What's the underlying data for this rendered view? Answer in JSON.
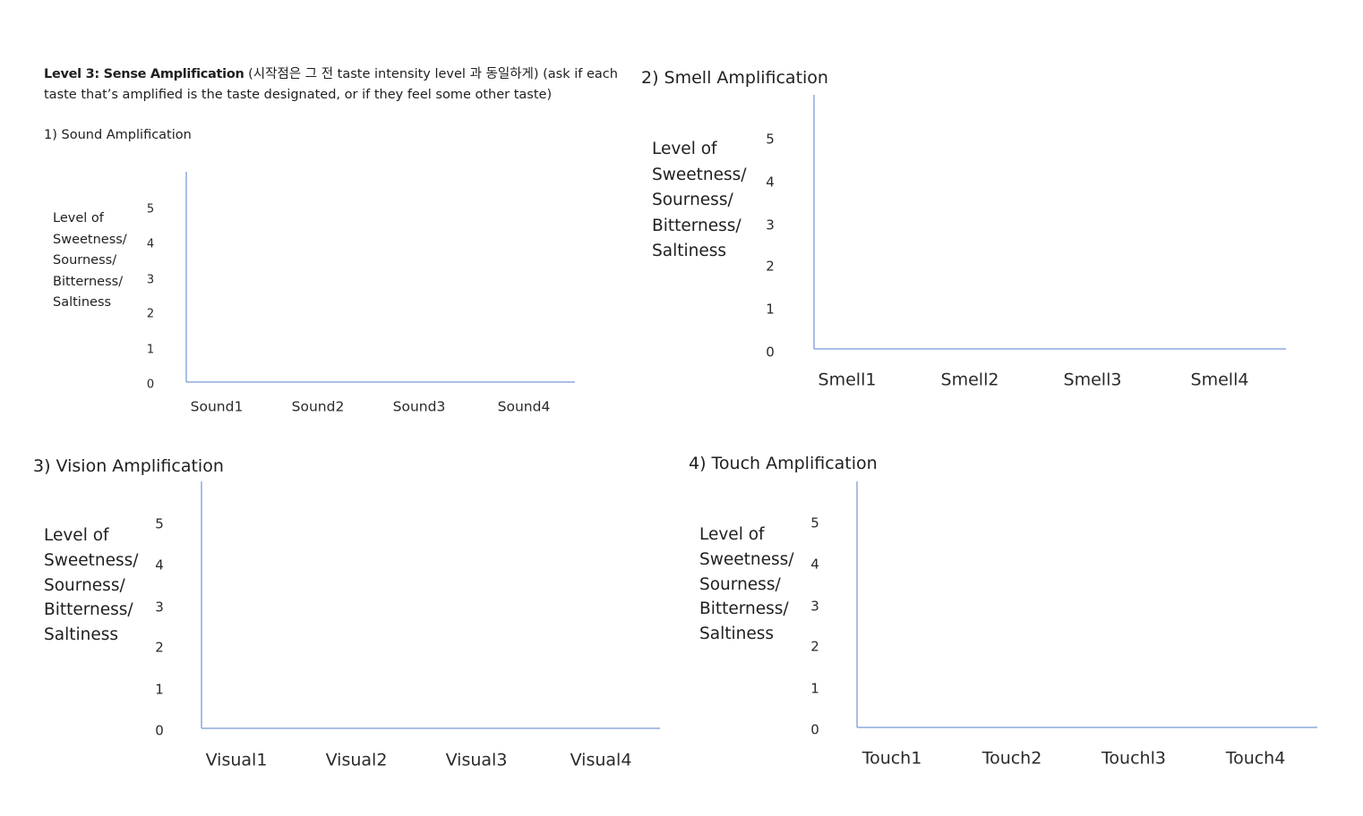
{
  "intro": {
    "bold": "Level 3: Sense Amplification",
    "rest": " (시작점은 그 전 taste intensity level 과 동일하게) (ask if each taste that’s amplified is the taste designated, or if they feel some other taste)"
  },
  "colors": {
    "axis": "#8eaadb",
    "text": "#1f1f1f"
  },
  "chart_data": [
    {
      "type": "bar",
      "title": "1) Sound Amplification",
      "ylabel": "Level of\nSweetness/\nSourness/\nBitterness/\nSaltiness",
      "categories": [
        "Sound1",
        "Sound2",
        "Sound3",
        "Sound4"
      ],
      "values": [
        null,
        null,
        null,
        null
      ],
      "yticks": [
        "0",
        "1",
        "2",
        "3",
        "4",
        "5"
      ],
      "ylim": [
        0,
        5
      ],
      "grid": false
    },
    {
      "type": "bar",
      "title": "2) Smell Amplification",
      "ylabel": "Level of\nSweetness/\nSourness/\nBitterness/\nSaltiness",
      "categories": [
        "Smell1",
        "Smell2",
        "Smell3",
        "Smell4"
      ],
      "values": [
        null,
        null,
        null,
        null
      ],
      "yticks": [
        "0",
        "1",
        "2",
        "3",
        "4",
        "5"
      ],
      "ylim": [
        0,
        5
      ],
      "grid": false
    },
    {
      "type": "bar",
      "title": "3) Vision Amplification",
      "ylabel": "Level of\nSweetness/\nSourness/\nBitterness/\nSaltiness",
      "categories": [
        "Visual1",
        "Visual2",
        "Visual3",
        "Visual4"
      ],
      "values": [
        null,
        null,
        null,
        null
      ],
      "yticks": [
        "0",
        "1",
        "2",
        "3",
        "4",
        "5"
      ],
      "ylim": [
        0,
        5
      ],
      "grid": false
    },
    {
      "type": "bar",
      "title": "4) Touch Amplification",
      "ylabel": "Level of\nSweetness/\nSourness/\nBitterness/\nSaltiness",
      "categories": [
        "Touch1",
        "Touch2",
        "Touchl3",
        "Touch4"
      ],
      "values": [
        null,
        null,
        null,
        null
      ],
      "yticks": [
        "0",
        "1",
        "2",
        "3",
        "4",
        "5"
      ],
      "ylim": [
        0,
        5
      ],
      "grid": false
    }
  ]
}
